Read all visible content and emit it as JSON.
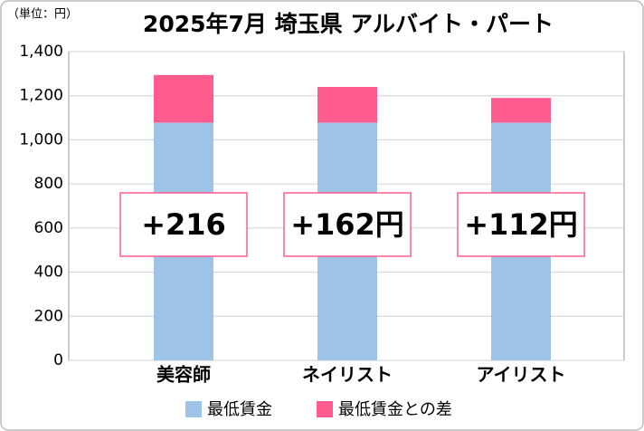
{
  "chart_data": {
    "type": "bar",
    "stacked": true,
    "title": "2025年7月 埼玉県 アルバイト・パート",
    "y_unit_label": "（単位：円）",
    "categories": [
      "美容師",
      "ネイリスト",
      "アイリスト"
    ],
    "series": [
      {
        "name": "最低賃金",
        "color": "#9dc3e6",
        "values": [
          1078,
          1078,
          1078
        ]
      },
      {
        "name": "最低賃金との差",
        "color": "#ff5b8f",
        "values": [
          216,
          162,
          112
        ],
        "value_labels": [
          "+216",
          "+162円",
          "+112円"
        ]
      }
    ],
    "ylim": [
      0,
      1400
    ],
    "yticks": [
      0,
      200,
      400,
      600,
      800,
      {
        "value": 1000,
        "label": "1,000"
      },
      {
        "value": 1200,
        "label": "1,200"
      },
      {
        "value": 1400,
        "label": "1,400"
      }
    ],
    "grid": true,
    "legend": "bottom"
  }
}
